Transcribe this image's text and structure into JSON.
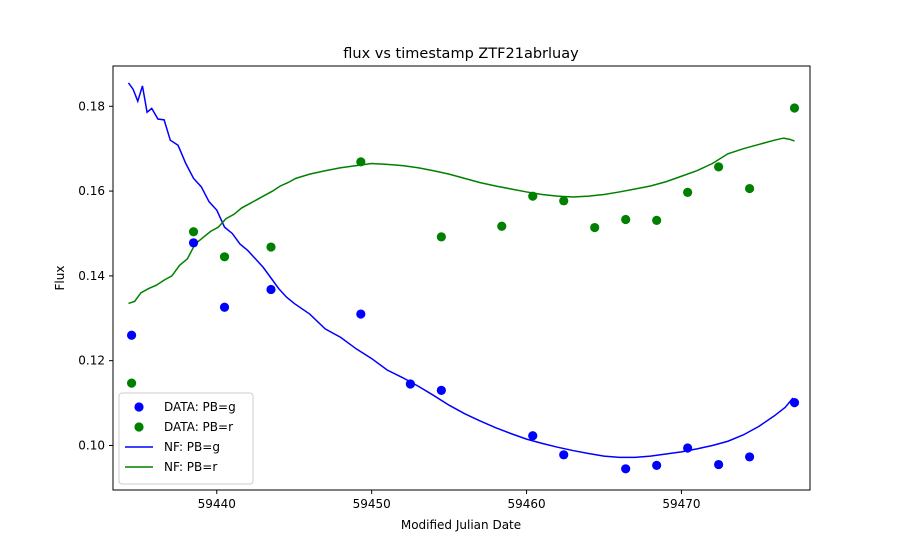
{
  "chart_data": {
    "type": "scatter",
    "title": "flux vs timestamp ZTF21abrluay",
    "xlabel": "Modified Julian Date",
    "ylabel": "Flux",
    "xlim": [
      59433.3,
      59478.3
    ],
    "ylim": [
      0.0895,
      0.1895
    ],
    "xticks": [
      59440,
      59450,
      59460,
      59470
    ],
    "yticks": [
      0.1,
      0.12,
      0.14,
      0.16,
      0.18
    ],
    "ytick_labels": [
      "0.10",
      "0.12",
      "0.14",
      "0.16",
      "0.18"
    ],
    "grid": false,
    "legend_position": "lower-left",
    "series": [
      {
        "name": "DATA: PB=g",
        "kind": "scatter",
        "color": "#0000ff",
        "x": [
          59434.5,
          59438.5,
          59440.5,
          59443.5,
          59449.3,
          59452.5,
          59454.5,
          59460.4,
          59462.4,
          59466.4,
          59468.4,
          59470.4,
          59472.4,
          59474.4,
          59477.3
        ],
        "y": [
          0.126,
          0.1478,
          0.1326,
          0.1368,
          0.131,
          0.1145,
          0.113,
          0.1023,
          0.0978,
          0.0945,
          0.0953,
          0.0994,
          0.0955,
          0.0973,
          0.1101
        ]
      },
      {
        "name": "DATA: PB=r",
        "kind": "scatter",
        "color": "#008000",
        "x": [
          59434.5,
          59438.5,
          59440.5,
          59443.5,
          59449.3,
          59454.5,
          59458.4,
          59460.4,
          59462.4,
          59464.4,
          59466.4,
          59468.4,
          59470.4,
          59472.4,
          59474.4,
          59477.3
        ],
        "y": [
          0.1147,
          0.1504,
          0.1445,
          0.1468,
          0.1669,
          0.1492,
          0.1517,
          0.1588,
          0.1577,
          0.1514,
          0.1533,
          0.1531,
          0.1597,
          0.1657,
          0.1606,
          0.1796
        ]
      },
      {
        "name": "NF: PB=g",
        "kind": "line",
        "color": "#0000ff",
        "x": [
          59434.3,
          59434.6,
          59434.9,
          59435.2,
          59435.5,
          59435.8,
          59436.2,
          59436.6,
          59437.0,
          59437.5,
          59438.0,
          59438.5,
          59439.0,
          59439.5,
          59440.0,
          59440.5,
          59441.0,
          59441.5,
          59442.0,
          59442.5,
          59443.0,
          59443.5,
          59444.0,
          59444.5,
          59445.0,
          59446.0,
          59447.0,
          59448.0,
          59449.0,
          59450.0,
          59451.0,
          59452.0,
          59453.0,
          59454.0,
          59455.0,
          59456.0,
          59457.0,
          59458.0,
          59459.0,
          59460.0,
          59461.0,
          59462.0,
          59463.0,
          59464.0,
          59465.0,
          59466.0,
          59467.0,
          59468.0,
          59469.0,
          59470.0,
          59471.0,
          59472.0,
          59473.0,
          59474.0,
          59475.0,
          59476.0,
          59476.7,
          59477.2
        ],
        "y": [
          0.1855,
          0.184,
          0.1812,
          0.1848,
          0.1786,
          0.1795,
          0.177,
          0.1768,
          0.172,
          0.1708,
          0.1665,
          0.163,
          0.161,
          0.1575,
          0.1555,
          0.1515,
          0.15,
          0.1475,
          0.146,
          0.144,
          0.142,
          0.1395,
          0.137,
          0.135,
          0.1335,
          0.131,
          0.1275,
          0.1255,
          0.1228,
          0.1205,
          0.1178,
          0.116,
          0.114,
          0.1118,
          0.1095,
          0.1075,
          0.1058,
          0.1042,
          0.1028,
          0.1015,
          0.1005,
          0.0996,
          0.0988,
          0.0981,
          0.0975,
          0.0972,
          0.0972,
          0.0975,
          0.098,
          0.0985,
          0.0992,
          0.1,
          0.101,
          0.1025,
          0.1045,
          0.107,
          0.109,
          0.1112
        ]
      },
      {
        "name": "NF: PB=r",
        "kind": "line",
        "color": "#008000",
        "x": [
          59434.3,
          59434.7,
          59435.1,
          59435.6,
          59436.1,
          59436.6,
          59437.1,
          59437.6,
          59438.1,
          59438.6,
          59439.1,
          59439.6,
          59440.1,
          59440.6,
          59441.1,
          59441.6,
          59442.1,
          59442.6,
          59443.1,
          59443.6,
          59444.1,
          59444.6,
          59445.1,
          59446.0,
          59447.0,
          59448.0,
          59449.0,
          59450.0,
          59451.0,
          59452.0,
          59453.0,
          59454.0,
          59455.0,
          59456.0,
          59457.0,
          59458.0,
          59459.0,
          59460.0,
          59461.0,
          59462.0,
          59463.0,
          59464.0,
          59465.0,
          59466.0,
          59467.0,
          59468.0,
          59469.0,
          59470.0,
          59471.0,
          59472.0,
          59473.0,
          59474.0,
          59475.0,
          59476.0,
          59476.6,
          59477.0,
          59477.3
        ],
        "y": [
          0.1335,
          0.134,
          0.136,
          0.137,
          0.1378,
          0.139,
          0.14,
          0.1425,
          0.144,
          0.1475,
          0.149,
          0.1505,
          0.1515,
          0.1535,
          0.1545,
          0.156,
          0.157,
          0.158,
          0.159,
          0.16,
          0.1612,
          0.162,
          0.163,
          0.164,
          0.1648,
          0.1655,
          0.166,
          0.1665,
          0.1663,
          0.166,
          0.1655,
          0.1648,
          0.164,
          0.163,
          0.162,
          0.1612,
          0.1605,
          0.1598,
          0.1592,
          0.1588,
          0.1586,
          0.1588,
          0.1592,
          0.1598,
          0.1605,
          0.1612,
          0.1622,
          0.1635,
          0.1648,
          0.1665,
          0.1688,
          0.17,
          0.171,
          0.172,
          0.1725,
          0.1722,
          0.1718
        ]
      }
    ]
  }
}
